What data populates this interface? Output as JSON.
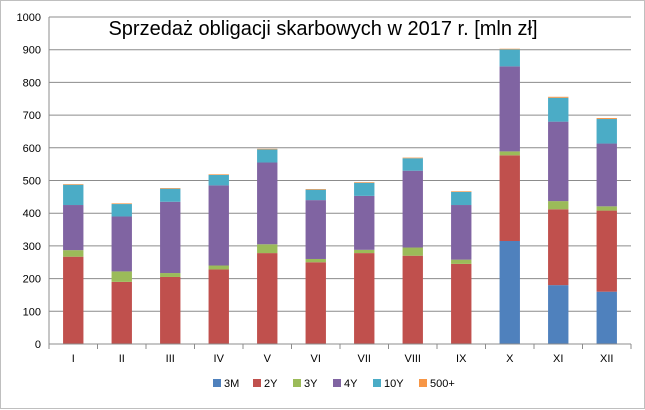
{
  "chart_data": {
    "type": "bar",
    "stacked": true,
    "title": "Sprzedaż obligacji skarbowych w 2017 r. [mln zł]",
    "xlabel": "",
    "ylabel": "",
    "ylim": [
      0,
      1000
    ],
    "yticks": [
      0,
      100,
      200,
      300,
      400,
      500,
      600,
      700,
      800,
      900,
      1000
    ],
    "grid": true,
    "legend_position": "bottom",
    "categories": [
      "I",
      "II",
      "III",
      "IV",
      "V",
      "VI",
      "VII",
      "VIII",
      "IX",
      "X",
      "XI",
      "XII"
    ],
    "series": [
      {
        "name": "3M",
        "color": "#4F81BD",
        "values": [
          0,
          0,
          0,
          0,
          0,
          0,
          0,
          0,
          0,
          315,
          180,
          160
        ]
      },
      {
        "name": "2Y",
        "color": "#C0504D",
        "values": [
          267,
          190,
          205,
          228,
          278,
          250,
          278,
          270,
          245,
          262,
          232,
          248
        ]
      },
      {
        "name": "3Y",
        "color": "#9BBB59",
        "values": [
          20,
          32,
          12,
          12,
          27,
          10,
          10,
          25,
          13,
          12,
          25,
          13
        ]
      },
      {
        "name": "4Y",
        "color": "#8064A2",
        "values": [
          138,
          168,
          218,
          245,
          250,
          180,
          165,
          235,
          167,
          260,
          243,
          192
        ]
      },
      {
        "name": "10Y",
        "color": "#4BACC6",
        "values": [
          62,
          38,
          40,
          32,
          40,
          32,
          40,
          38,
          40,
          52,
          73,
          75
        ]
      },
      {
        "name": "500+",
        "color": "#F79646",
        "values": [
          2,
          2,
          2,
          2,
          2,
          2,
          2,
          2,
          2,
          2,
          3,
          3
        ]
      }
    ]
  }
}
